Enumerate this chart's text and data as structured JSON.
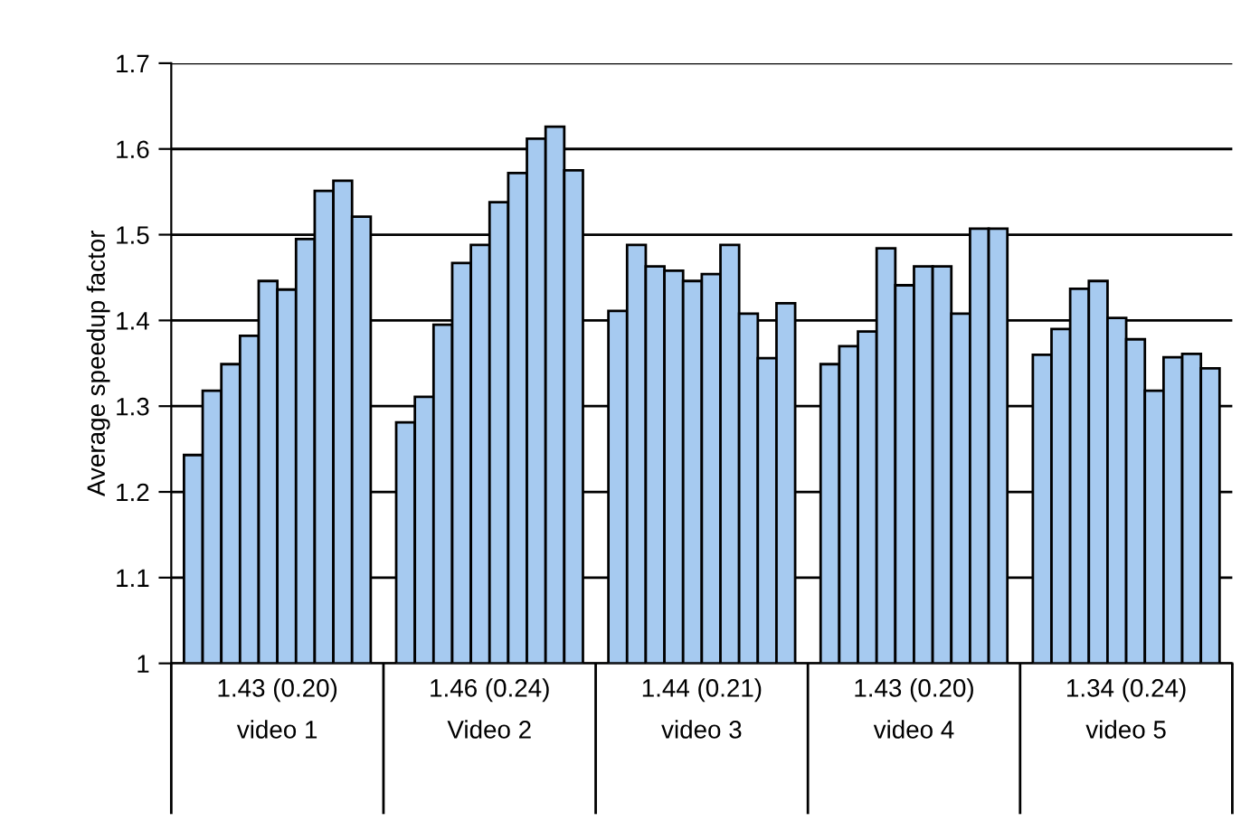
{
  "chart_data": {
    "type": "bar",
    "ylabel": "Average speedup factor",
    "categories": [
      "1.43 (0.20)\nvideo 1",
      "1.46 (0.24)\nVideo 2",
      "1.44 (0.21)\nvideo 3",
      "1.43 (0.20)\nvideo 4",
      "1.34 (0.24)\nvideo 5"
    ],
    "series": [
      {
        "color": "#a6caf0",
        "values": [
          1.243,
          1.281,
          1.411,
          1.349,
          1.36
        ]
      },
      {
        "color": "#a6caf0",
        "values": [
          1.318,
          1.311,
          1.488,
          1.37,
          1.39
        ]
      },
      {
        "color": "#a6caf0",
        "values": [
          1.349,
          1.395,
          1.463,
          1.387,
          1.437
        ]
      },
      {
        "color": "#a6caf0",
        "values": [
          1.382,
          1.467,
          1.458,
          1.484,
          1.446
        ]
      },
      {
        "color": "#a6caf0",
        "values": [
          1.446,
          1.488,
          1.446,
          1.441,
          1.403
        ]
      },
      {
        "color": "#a6caf0",
        "values": [
          1.436,
          1.538,
          1.454,
          1.463,
          1.378
        ]
      },
      {
        "color": "#a6caf0",
        "values": [
          1.495,
          1.572,
          1.488,
          1.463,
          1.318
        ]
      },
      {
        "color": "#a6caf0",
        "values": [
          1.551,
          1.612,
          1.408,
          1.408,
          1.357
        ]
      },
      {
        "color": "#a6caf0",
        "values": [
          1.563,
          1.626,
          1.356,
          1.507,
          1.361
        ]
      },
      {
        "color": "#a6caf0",
        "values": [
          1.521,
          1.575,
          1.42,
          1.507,
          1.344
        ]
      }
    ],
    "ylim": [
      1,
      1.7
    ],
    "yticks": [
      1,
      1.1,
      1.2,
      1.3,
      1.4,
      1.5,
      1.6,
      1.7
    ],
    "grid": "y"
  }
}
